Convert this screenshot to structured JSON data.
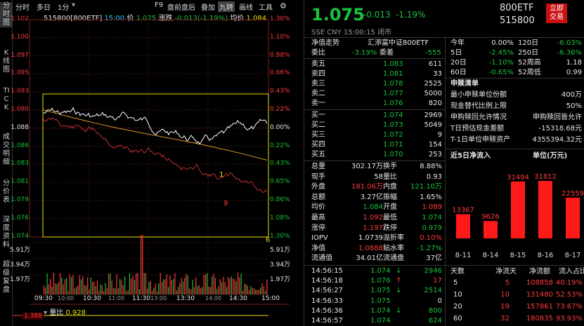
{
  "vtabs": [
    {
      "label": "分时图",
      "active": true
    },
    {
      "label": "K线图",
      "active": false
    },
    {
      "label": "TICK",
      "active": false
    },
    {
      "label": "成交明细",
      "active": false
    },
    {
      "label": "分价表",
      "active": false
    },
    {
      "label": "深度资料",
      "active": false
    },
    {
      "label": "超级复盘",
      "active": false
    }
  ],
  "toolbar": {
    "items": [
      "分时",
      "多日",
      "1分",
      "F9",
      "盘前盘后",
      "叠加",
      "九转",
      "画线",
      "工具"
    ],
    "active": "九转",
    "icon": "settings-gear-icon"
  },
  "quote_line": {
    "code": "515800[800ETF]",
    "time": "15:00",
    "price_label": "价",
    "price": "1.075",
    "chg_label": "涨跌",
    "chg": "-0.013(-1.19%)",
    "avg_label": "均价",
    "avg": "1.084"
  },
  "price_axis": {
    "left": [
      "1.102",
      "1.100",
      "1.097",
      "1.095",
      "1.093",
      "1.090",
      "1.088",
      "1.086",
      "1.083",
      "1.081",
      "1.079",
      "1.076",
      "1.074"
    ],
    "right": [
      "1.30%",
      "1.10%",
      "0.88%",
      "0.66%",
      "0.43%",
      "0.22%",
      "0.00%",
      "0.22%",
      "0.43%",
      "0.65%",
      "0.86%",
      "1.08%",
      "1.30%"
    ]
  },
  "vol_axis": {
    "left": [
      "5.91万",
      "3.94万",
      "1.97万"
    ],
    "right": [
      "5.91万",
      "3.94万",
      "1.97万"
    ]
  },
  "time_axis": [
    "09:30",
    "10:30",
    "11:30",
    "13:30",
    "14:30",
    "15:00"
  ],
  "time_axis_mid": [
    "10:00",
    "11:00",
    "13:00",
    "14:00"
  ],
  "markers": [
    "1",
    "9",
    "6"
  ],
  "bottom_indicator": {
    "label": "量比",
    "value": "0.928",
    "axis": "1.388"
  },
  "header": {
    "price": "1.075",
    "change": "-0.013",
    "pct": "-1.19%",
    "name": "800ETF",
    "code": "515800",
    "buy_btn": "立即交易",
    "market": "SSE CNY",
    "time": "15:00:15",
    "status": "闭市"
  },
  "jz": {
    "label": "净值走势",
    "value": "汇添富中证800ETF"
  },
  "weibi": {
    "label1": "委比",
    "v1": "-3.19%",
    "label2": "委差",
    "v2": "-555"
  },
  "asks": [
    {
      "l": "卖五",
      "p": "1.083",
      "v": "611"
    },
    {
      "l": "卖四",
      "p": "1.081",
      "v": "33"
    },
    {
      "l": "卖三",
      "p": "1.078",
      "v": "2525"
    },
    {
      "l": "卖二",
      "p": "1.077",
      "v": "5000"
    },
    {
      "l": "卖一",
      "p": "1.076",
      "v": "820"
    }
  ],
  "bids": [
    {
      "l": "买一",
      "p": "1.074",
      "v": "2969"
    },
    {
      "l": "买二",
      "p": "1.073",
      "v": "5049"
    },
    {
      "l": "买三",
      "p": "1.072",
      "v": "9"
    },
    {
      "l": "买四",
      "p": "1.071",
      "v": "154"
    },
    {
      "l": "买五",
      "p": "1.070",
      "v": "253"
    }
  ],
  "stats": [
    {
      "l1": "总量",
      "v1": "302.17万",
      "c1": "w",
      "l2": "换手",
      "v2": "8.88%",
      "c2": "w"
    },
    {
      "l1": "现手",
      "v1": "58",
      "c1": "w",
      "l2": "量比",
      "v2": "0.93",
      "c2": "w"
    },
    {
      "l1": "外盘",
      "v1": "181.06万",
      "c1": "r",
      "l2": "内盘",
      "v2": "121.10万",
      "c2": "g"
    },
    {
      "l1": "总额",
      "v1": "3.27亿",
      "c1": "w",
      "l2": "振幅",
      "v2": "1.65%",
      "c2": "w"
    },
    {
      "l1": "均价",
      "v1": "1.084",
      "c1": "g",
      "l2": "开盘",
      "v2": "1.089",
      "c2": "r"
    },
    {
      "l1": "最高",
      "v1": "1.092",
      "c1": "r",
      "l2": "最低",
      "v2": "1.074",
      "c2": "g"
    },
    {
      "l1": "涨停",
      "v1": "1.197",
      "c1": "r",
      "l2": "跌停",
      "v2": "0.979",
      "c2": "g"
    },
    {
      "l1": "IOPV",
      "v1": "1.0739",
      "c1": "w",
      "l2": "溢折率",
      "v2": "0.10%",
      "c2": "r"
    },
    {
      "l1": "净值",
      "v1": "1.0888",
      "c1": "r",
      "l2": "贴水率",
      "v2": "-1.27%",
      "c2": "g"
    },
    {
      "l1": "流通值",
      "v1": "34.01亿",
      "c1": "w",
      "l2": "流通盘",
      "v2": "37亿",
      "c2": "w"
    }
  ],
  "ticks": [
    {
      "t": "14:56:15",
      "p": "1.074",
      "c": "g",
      "a": "down",
      "v": "2946",
      "vc": "g"
    },
    {
      "t": "14:56:18",
      "p": "1.076",
      "c": "g",
      "a": "up",
      "v": "17",
      "vc": "r"
    },
    {
      "t": "14:56:27",
      "p": "1.075",
      "c": "g",
      "a": "down",
      "v": "2514",
      "vc": "g"
    },
    {
      "t": "14:56:33",
      "p": "1.075",
      "c": "g",
      "a": "",
      "v": "0",
      "vc": "w"
    },
    {
      "t": "14:56:36",
      "p": "1.074",
      "c": "g",
      "a": "down",
      "v": "800",
      "vc": "g"
    },
    {
      "t": "14:56:57",
      "p": "1.074",
      "c": "g",
      "a": "",
      "v": "624",
      "vc": "g"
    }
  ],
  "perf": [
    {
      "l1": "今年",
      "v1": "0.00%",
      "c1": "w",
      "l2": "120日",
      "v2": "-6.03%",
      "c2": "g"
    },
    {
      "l1": "5日",
      "v1": "-2.45%",
      "c1": "g",
      "l2": "250日",
      "v2": "-6.36%",
      "c2": "g"
    },
    {
      "l1": "20日",
      "v1": "-1.10%",
      "c1": "g",
      "l2": "52周高",
      "v2": "1.18",
      "c2": "w"
    },
    {
      "l1": "60日",
      "v1": "-0.65%",
      "c1": "g",
      "l2": "52周低",
      "v2": "0.99",
      "c2": "w"
    }
  ],
  "sg": {
    "title": "申赎清单",
    "rows": [
      {
        "l": "最小申赎单位份额",
        "v": "400万"
      },
      {
        "l": "现金替代比例上限",
        "v": "50%"
      },
      {
        "l": "申购赎回允许情况",
        "v": "申购赎回皆允许"
      },
      {
        "l": "T日预估现金差额",
        "v": "-15318.68元"
      },
      {
        "l": "T-1日单位申赎资产",
        "v": "4355394.32元"
      }
    ]
  },
  "inflow": {
    "title": "近5日净流入",
    "unit": "单位(万元)",
    "color": "#ff1a1a"
  },
  "chart_data": {
    "type": "bar",
    "title": "近5日净流入",
    "ylabel": "单位(万元)",
    "categories": [
      "8-11",
      "8-14",
      "8-15",
      "8-16",
      "8-17"
    ],
    "values": [
      13367,
      9626,
      31494,
      31812,
      22559
    ],
    "ylim": [
      0,
      33000
    ]
  },
  "flow_table": {
    "headers": [
      "天数",
      "净流天",
      "净流额",
      "流入占比"
    ],
    "rows": [
      {
        "d": "5",
        "n": "5",
        "a": "108858",
        "p": "40.19%"
      },
      {
        "d": "10",
        "n": "10",
        "a": "131480",
        "p": "52.53%"
      },
      {
        "d": "20",
        "n": "19",
        "a": "157861",
        "p": "73.67%"
      },
      {
        "d": "60",
        "n": "32",
        "a": "180835",
        "p": "93.93%"
      }
    ]
  }
}
